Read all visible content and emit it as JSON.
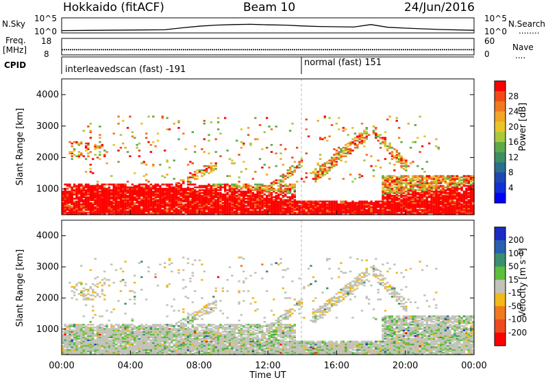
{
  "header": {
    "station": "Hokkaido (fitACF)",
    "beam": "Beam 10",
    "date": "24/Jun/2016"
  },
  "nsky_panel": {
    "left_label": "N.Sky",
    "right_label": "N.Search",
    "right_legend_line": "........",
    "left_ticks": [
      "10^5",
      "10^0"
    ],
    "right_ticks": [
      "10^5",
      "10^0"
    ]
  },
  "freq_panel": {
    "left_label_line1": "Freq.",
    "left_label_line2": "[MHz]",
    "right_label": "Nave",
    "right_legend_line": "....",
    "left_ticks": [
      "18",
      "8"
    ],
    "right_ticks": [
      "60",
      "0"
    ]
  },
  "cpid_panel": {
    "label": "CPID",
    "segments": [
      {
        "label": "interleavedscan (fast) -191",
        "start_hour": 0
      },
      {
        "label": "normal (fast) 151",
        "start_hour": 14
      }
    ]
  },
  "power_panel": {
    "ylabel": "Slant Range [km]",
    "colorbar_label": "Power [dB]",
    "colorbar_ticks": [
      "28",
      "24",
      "20",
      "16",
      "12",
      "8",
      "4"
    ],
    "colors": [
      "#ff0000",
      "#f24a16",
      "#f07a20",
      "#f3a525",
      "#e9c52a",
      "#a9c93a",
      "#5fa84a",
      "#3c8f63",
      "#2a6f8c",
      "#1d47b5",
      "#1230d8",
      "#0000ff"
    ]
  },
  "velocity_panel": {
    "ylabel": "Slant Range [km]",
    "colorbar_label": "Velocity [m s⁻¹]",
    "colorbar_ticks": [
      "200",
      "100",
      "50",
      "15",
      "-15",
      "-50",
      "-100",
      "-200"
    ],
    "colors": [
      "#1a2cc4",
      "#2b5fb2",
      "#3a8f6e",
      "#5bbf3a",
      "#c2c2b8",
      "#f2b91a",
      "#f07a1e",
      "#ee4a1e",
      "#ff0000"
    ],
    "ground_scatter_color": "#c2c2b8"
  },
  "xaxis": {
    "label": "Time UT",
    "ticks": [
      "00:00",
      "04:00",
      "08:00",
      "12:00",
      "16:00",
      "20:00",
      "00:00"
    ]
  },
  "chart_data": [
    {
      "type": "line",
      "name": "N.Sky",
      "x": [
        0,
        2,
        4,
        6,
        7,
        8,
        9,
        10,
        11,
        12,
        13,
        14,
        15,
        16,
        17,
        18,
        19,
        20,
        22,
        24
      ],
      "y_log10": [
        0.6,
        0.7,
        0.8,
        0.9,
        1.6,
        2.2,
        2.6,
        2.8,
        2.9,
        2.7,
        2.6,
        2.3,
        2.1,
        2.0,
        1.9,
        2.8,
        1.8,
        1.5,
        1.0,
        0.7
      ],
      "ylim": [
        0,
        5
      ]
    },
    {
      "type": "line",
      "name": "Freq.",
      "x": [
        0,
        24
      ],
      "y": [
        11,
        11
      ],
      "ylim": [
        8,
        18
      ]
    },
    {
      "type": "heatmap",
      "title": "Power",
      "x_range_hours": [
        0,
        24
      ],
      "y_range_km": [
        180,
        4500
      ],
      "yticks": [
        1000,
        2000,
        3000,
        4000
      ],
      "colorbar_range_db": [
        0,
        32
      ]
    },
    {
      "type": "heatmap",
      "title": "Velocity",
      "x_range_hours": [
        0,
        24
      ],
      "y_range_km": [
        180,
        4500
      ],
      "yticks": [
        1000,
        2000,
        3000,
        4000
      ],
      "colorbar_range_ms": [
        -250,
        250
      ]
    }
  ]
}
